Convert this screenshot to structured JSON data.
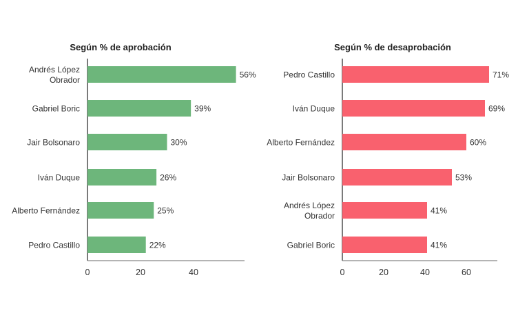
{
  "chart_data": [
    {
      "type": "bar",
      "orientation": "horizontal",
      "title": "Según % de aprobación",
      "categories": [
        "Andrés López Obrador",
        "Gabriel Boric",
        "Jair Bolsonaro",
        "Iván Duque",
        "Alberto Fernández",
        "Pedro Castillo"
      ],
      "category_lines": [
        [
          "Andrés López",
          "Obrador"
        ],
        [
          "Gabriel Boric"
        ],
        [
          "Jair Bolsonaro"
        ],
        [
          "Iván Duque"
        ],
        [
          "Alberto Fernández"
        ],
        [
          "Pedro Castillo"
        ]
      ],
      "values": [
        56,
        39,
        30,
        26,
        25,
        22
      ],
      "data_labels": [
        "56%",
        "39%",
        "30%",
        "26%",
        "25%",
        "22%"
      ],
      "xticks": [
        0,
        20,
        40
      ],
      "xlim": [
        0,
        59
      ],
      "color": "#6db67b",
      "grid": false
    },
    {
      "type": "bar",
      "orientation": "horizontal",
      "title": "Según % de desaprobación",
      "categories": [
        "Pedro Castillo",
        "Iván Duque",
        "Alberto Fernández",
        "Jair Bolsonaro",
        "Andrés López Obrador",
        "Gabriel Boric"
      ],
      "category_lines": [
        [
          "Pedro Castillo"
        ],
        [
          "Iván Duque"
        ],
        [
          "Alberto Fernández"
        ],
        [
          "Jair Bolsonaro"
        ],
        [
          "Andrés López",
          "Obrador"
        ],
        [
          "Gabriel Boric"
        ]
      ],
      "values": [
        71,
        69,
        60,
        53,
        41,
        41
      ],
      "data_labels": [
        "71%",
        "69%",
        "60%",
        "53%",
        "41%",
        "41%"
      ],
      "xticks": [
        0,
        20,
        40,
        60
      ],
      "xlim": [
        0,
        75
      ],
      "color": "#f9616e",
      "grid": false
    }
  ]
}
